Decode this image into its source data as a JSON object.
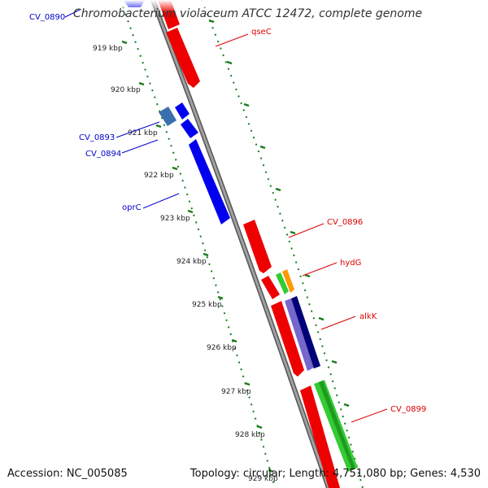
{
  "title": "Chromobacterium violaceum ATCC 12472, complete genome",
  "accession": "Accession: NC_005085",
  "summary": "Topology: circular; Length: 4,751,080 bp; Genes: 4,530",
  "ticks": [
    {
      "label": "919 kbp"
    },
    {
      "label": "920 kbp"
    },
    {
      "label": "921 kbp"
    },
    {
      "label": "922 kbp"
    },
    {
      "label": "923 kbp"
    },
    {
      "label": "924 kbp"
    },
    {
      "label": "925 kbp"
    },
    {
      "label": "926 kbp"
    },
    {
      "label": "927 kbp"
    },
    {
      "label": "928 kbp"
    },
    {
      "label": "929 kbp"
    }
  ],
  "gene_labels": [
    {
      "text": "CV_0890",
      "color": "#0000cc"
    },
    {
      "text": "qseC",
      "color": "#dd0000"
    },
    {
      "text": "CV_0893",
      "color": "#0000cc"
    },
    {
      "text": "CV_0894",
      "color": "#0000cc"
    },
    {
      "text": "oprC",
      "color": "#0000cc"
    },
    {
      "text": "CV_0896",
      "color": "#dd0000"
    },
    {
      "text": "hydG",
      "color": "#dd0000"
    },
    {
      "text": "alkK",
      "color": "#dd0000"
    },
    {
      "text": "CV_0899",
      "color": "#dd0000"
    }
  ],
  "colors": {
    "backbone": "#8a8a8a",
    "tick": "#1a7a1a",
    "forward_strand": "#ee0000",
    "reverse_strand": "#0000ee",
    "light_blue": "#3a6fae",
    "green": "#33cc33",
    "orange": "#ff9900",
    "purple": "#7766cc",
    "navy": "#000077"
  }
}
